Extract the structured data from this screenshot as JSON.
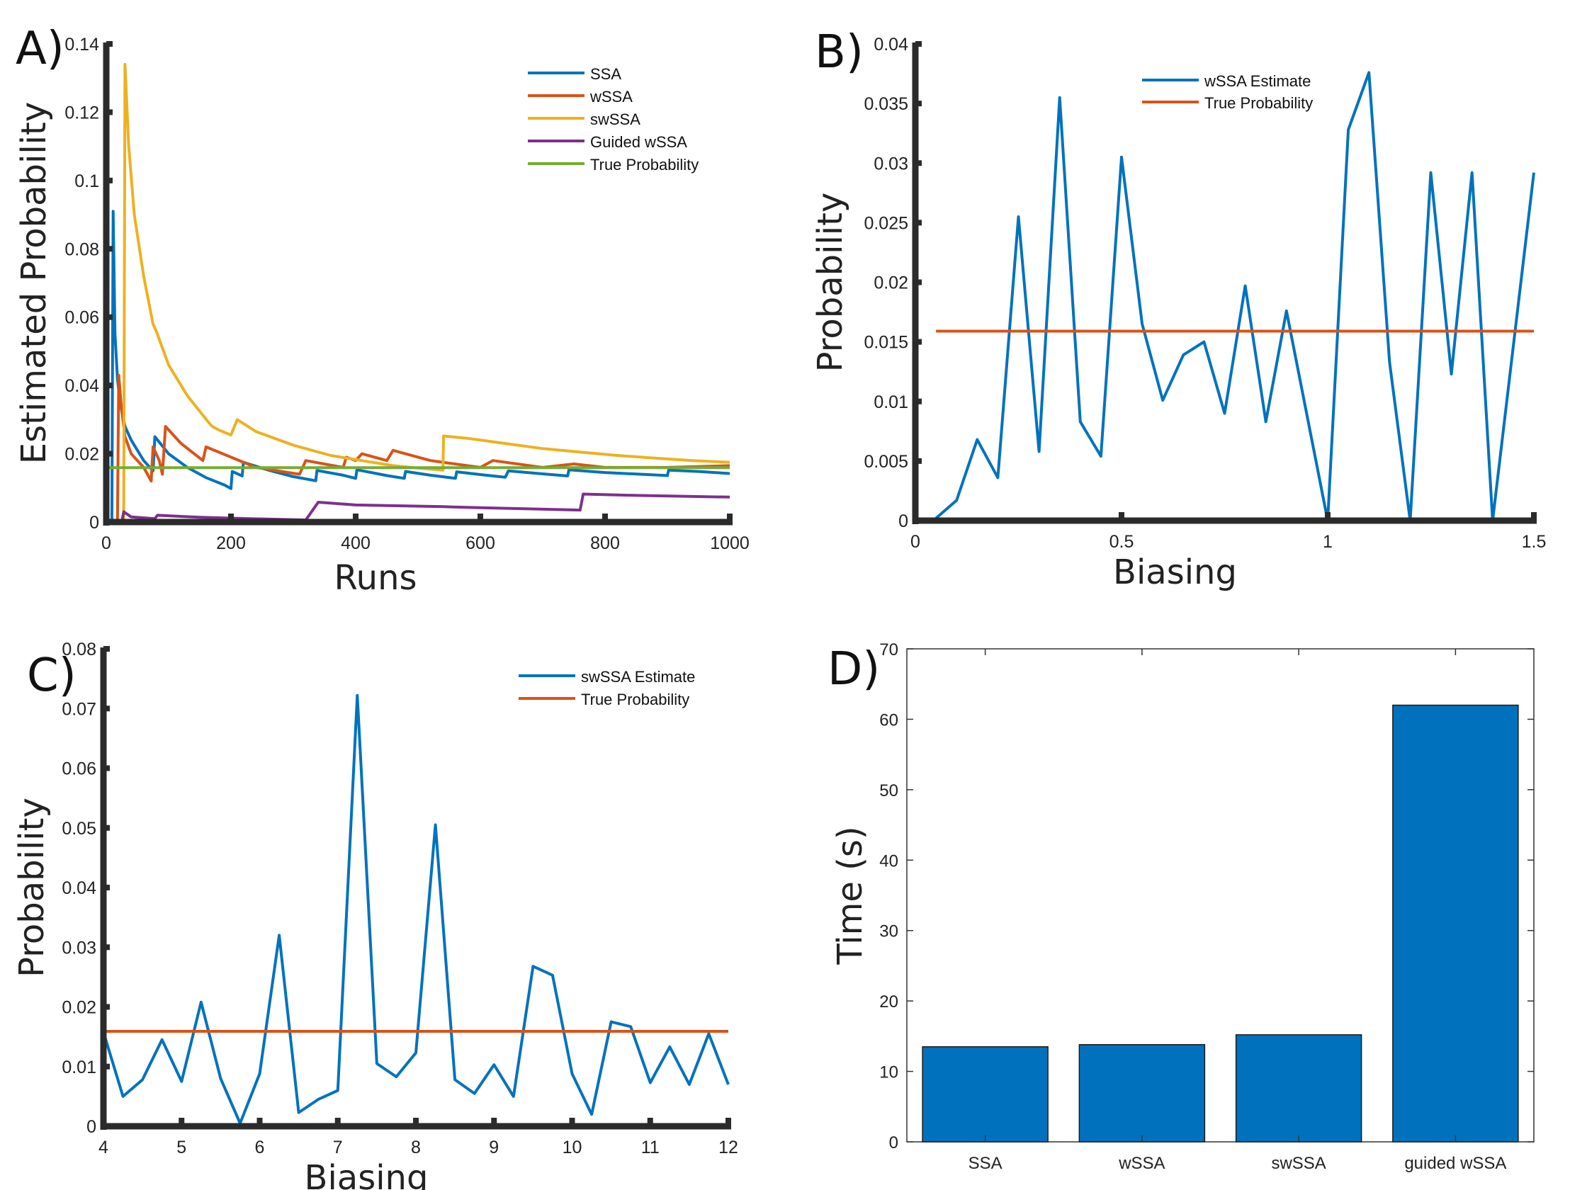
{
  "chart_data": [
    {
      "panel": "A)",
      "type": "line",
      "xlabel": "Runs",
      "ylabel": "Estimated Probability",
      "xlim": [
        0,
        1000
      ],
      "ylim": [
        0,
        0.14
      ],
      "xticks": [
        0,
        200,
        400,
        600,
        800,
        1000
      ],
      "yticks": [
        0,
        0.02,
        0.04,
        0.06,
        0.08,
        0.1,
        0.12,
        0.14
      ],
      "legend_position": "top-right",
      "grid": false,
      "series": [
        {
          "name": "SSA",
          "color": "#0072BD",
          "points": [
            [
              0,
              0
            ],
            [
              9,
              0
            ],
            [
              11,
              0.091
            ],
            [
              14,
              0.055
            ],
            [
              18,
              0.042
            ],
            [
              22,
              0.035
            ],
            [
              30,
              0.028
            ],
            [
              40,
              0.024
            ],
            [
              60,
              0.018
            ],
            [
              75,
              0.015
            ],
            [
              78,
              0.025
            ],
            [
              100,
              0.02
            ],
            [
              130,
              0.016
            ],
            [
              160,
              0.013
            ],
            [
              190,
              0.0108
            ],
            [
              200,
              0.0098
            ],
            [
              202,
              0.0148
            ],
            [
              218,
              0.0135
            ],
            [
              220,
              0.0175
            ],
            [
              260,
              0.0152
            ],
            [
              300,
              0.0133
            ],
            [
              336,
              0.0121
            ],
            [
              338,
              0.0151
            ],
            [
              380,
              0.0137
            ],
            [
              400,
              0.0128
            ],
            [
              402,
              0.0153
            ],
            [
              450,
              0.0136
            ],
            [
              478,
              0.0128
            ],
            [
              480,
              0.0148
            ],
            [
              520,
              0.0137
            ],
            [
              560,
              0.0128
            ],
            [
              562,
              0.0147
            ],
            [
              600,
              0.0139
            ],
            [
              640,
              0.0131
            ],
            [
              645,
              0.015
            ],
            [
              700,
              0.0141
            ],
            [
              740,
              0.0135
            ],
            [
              742,
              0.0153
            ],
            [
              800,
              0.0145
            ],
            [
              880,
              0.0138
            ],
            [
              900,
              0.0136
            ],
            [
              902,
              0.0152
            ],
            [
              950,
              0.0148
            ],
            [
              1000,
              0.0142
            ]
          ]
        },
        {
          "name": "wSSA",
          "color": "#D95319",
          "points": [
            [
              0,
              0
            ],
            [
              18,
              0
            ],
            [
              20,
              0.043
            ],
            [
              24,
              0.034
            ],
            [
              30,
              0.025
            ],
            [
              40,
              0.02
            ],
            [
              60,
              0.016
            ],
            [
              72,
              0.012
            ],
            [
              75,
              0.022
            ],
            [
              85,
              0.018
            ],
            [
              90,
              0.014
            ],
            [
              95,
              0.028
            ],
            [
              120,
              0.023
            ],
            [
              155,
              0.018
            ],
            [
              160,
              0.022
            ],
            [
              200,
              0.019
            ],
            [
              240,
              0.016
            ],
            [
              310,
              0.014
            ],
            [
              320,
              0.018
            ],
            [
              380,
              0.016
            ],
            [
              385,
              0.019
            ],
            [
              400,
              0.018
            ],
            [
              410,
              0.02
            ],
            [
              450,
              0.018
            ],
            [
              460,
              0.021
            ],
            [
              500,
              0.019
            ],
            [
              520,
              0.018
            ],
            [
              600,
              0.016
            ],
            [
              620,
              0.018
            ],
            [
              700,
              0.016
            ],
            [
              750,
              0.017
            ],
            [
              800,
              0.016
            ],
            [
              900,
              0.016
            ],
            [
              1000,
              0.0165
            ]
          ]
        },
        {
          "name": "swSSA",
          "color": "#EDB120",
          "points": [
            [
              0,
              0
            ],
            [
              28,
              0
            ],
            [
              30,
              0.134
            ],
            [
              36,
              0.11
            ],
            [
              45,
              0.09
            ],
            [
              60,
              0.072
            ],
            [
              75,
              0.058
            ],
            [
              80,
              0.056
            ],
            [
              100,
              0.046
            ],
            [
              130,
              0.037
            ],
            [
              165,
              0.029
            ],
            [
              170,
              0.028
            ],
            [
              180,
              0.027
            ],
            [
              200,
              0.0255
            ],
            [
              210,
              0.03
            ],
            [
              240,
              0.0265
            ],
            [
              300,
              0.0225
            ],
            [
              360,
              0.0195
            ],
            [
              420,
              0.0177
            ],
            [
              460,
              0.0165
            ],
            [
              500,
              0.0158
            ],
            [
              540,
              0.0152
            ],
            [
              541,
              0.0252
            ],
            [
              580,
              0.0245
            ],
            [
              640,
              0.023
            ],
            [
              700,
              0.0215
            ],
            [
              760,
              0.0205
            ],
            [
              820,
              0.0195
            ],
            [
              880,
              0.0187
            ],
            [
              940,
              0.018
            ],
            [
              1000,
              0.0175
            ]
          ]
        },
        {
          "name": "Guided wSSA",
          "color": "#7E2F8E",
          "points": [
            [
              0,
              0
            ],
            [
              25,
              0
            ],
            [
              28,
              0.003
            ],
            [
              40,
              0.0015
            ],
            [
              78,
              0.001
            ],
            [
              82,
              0.002
            ],
            [
              150,
              0.0014
            ],
            [
              230,
              0.001
            ],
            [
              320,
              0.0006
            ],
            [
              340,
              0.0058
            ],
            [
              400,
              0.005
            ],
            [
              540,
              0.0045
            ],
            [
              600,
              0.0042
            ],
            [
              760,
              0.0035
            ],
            [
              765,
              0.0082
            ],
            [
              850,
              0.0078
            ],
            [
              1000,
              0.0073
            ]
          ]
        },
        {
          "name": "True Probability",
          "color": "#77AC30",
          "points": [
            [
              0,
              0.0159
            ],
            [
              1000,
              0.0159
            ]
          ]
        }
      ]
    },
    {
      "panel": "B)",
      "type": "line",
      "xlabel": "Biasing",
      "ylabel": "Probability",
      "xlim": [
        0,
        1.5
      ],
      "ylim": [
        0,
        0.04
      ],
      "xticks": [
        0,
        0.5,
        1,
        1.5
      ],
      "yticks": [
        0,
        0.005,
        0.01,
        0.015,
        0.02,
        0.025,
        0.03,
        0.035,
        0.04
      ],
      "legend_position": "top-center",
      "grid": false,
      "series": [
        {
          "name": "wSSA Estimate",
          "color": "#0072BD",
          "x": [
            0.05,
            0.1,
            0.15,
            0.2,
            0.25,
            0.3,
            0.35,
            0.4,
            0.45,
            0.5,
            0.55,
            0.6,
            0.65,
            0.7,
            0.75,
            0.8,
            0.85,
            0.9,
            1.0,
            1.05,
            1.1,
            1.15,
            1.2,
            1.25,
            1.3,
            1.35,
            1.4,
            1.5
          ],
          "values": [
            0.0002,
            0.0017,
            0.0068,
            0.0036,
            0.0255,
            0.0058,
            0.0355,
            0.0083,
            0.0054,
            0.0305,
            0.0165,
            0.0101,
            0.0139,
            0.015,
            0.009,
            0.0197,
            0.0083,
            0.0176,
            0.0,
            0.0328,
            0.0376,
            0.0133,
            0.0,
            0.0292,
            0.0123,
            0.0292,
            0.0,
            0.0292
          ]
        },
        {
          "name": "True Probability",
          "color": "#D95319",
          "x": [
            0.05,
            1.5
          ],
          "values": [
            0.0159,
            0.0159
          ]
        }
      ]
    },
    {
      "panel": "C)",
      "type": "line",
      "xlabel": "Biasing",
      "ylabel": "Probability",
      "xlim": [
        4,
        12
      ],
      "ylim": [
        0,
        0.08
      ],
      "xticks": [
        4,
        5,
        6,
        7,
        8,
        9,
        10,
        11,
        12
      ],
      "yticks": [
        0,
        0.01,
        0.02,
        0.03,
        0.04,
        0.05,
        0.06,
        0.07,
        0.08
      ],
      "legend_position": "top-right",
      "grid": false,
      "series": [
        {
          "name": "swSSA Estimate",
          "color": "#0072BD",
          "x": [
            4,
            4.25,
            4.5,
            4.75,
            5,
            5.25,
            5.5,
            5.75,
            6,
            6.25,
            6.5,
            6.75,
            7,
            7.25,
            7.5,
            7.75,
            8,
            8.25,
            8.5,
            8.75,
            9,
            9.25,
            9.5,
            9.75,
            10,
            10.25,
            10.5,
            10.75,
            11,
            11.25,
            11.5,
            11.75,
            12
          ],
          "values": [
            0.0158,
            0.005,
            0.0078,
            0.0145,
            0.0075,
            0.0208,
            0.008,
            0.0005,
            0.0088,
            0.032,
            0.0023,
            0.0045,
            0.006,
            0.0722,
            0.0105,
            0.0083,
            0.0123,
            0.0505,
            0.0078,
            0.0055,
            0.0103,
            0.005,
            0.0268,
            0.0253,
            0.0088,
            0.002,
            0.0175,
            0.0167,
            0.0073,
            0.0133,
            0.007,
            0.0155,
            0.007
          ]
        },
        {
          "name": "True Probability",
          "color": "#D95319",
          "x": [
            4,
            12
          ],
          "values": [
            0.0159,
            0.0159
          ]
        }
      ]
    },
    {
      "panel": "D)",
      "type": "bar",
      "xlabel": "",
      "ylabel": "Time (s)",
      "ylim": [
        0,
        70
      ],
      "yticks": [
        0,
        10,
        20,
        30,
        40,
        50,
        60,
        70
      ],
      "color": "#0072BD",
      "categories": [
        "SSA",
        "wSSA",
        "swSSA",
        "guided wSSA"
      ],
      "values": [
        13.5,
        13.8,
        15.2,
        62.0
      ]
    }
  ]
}
